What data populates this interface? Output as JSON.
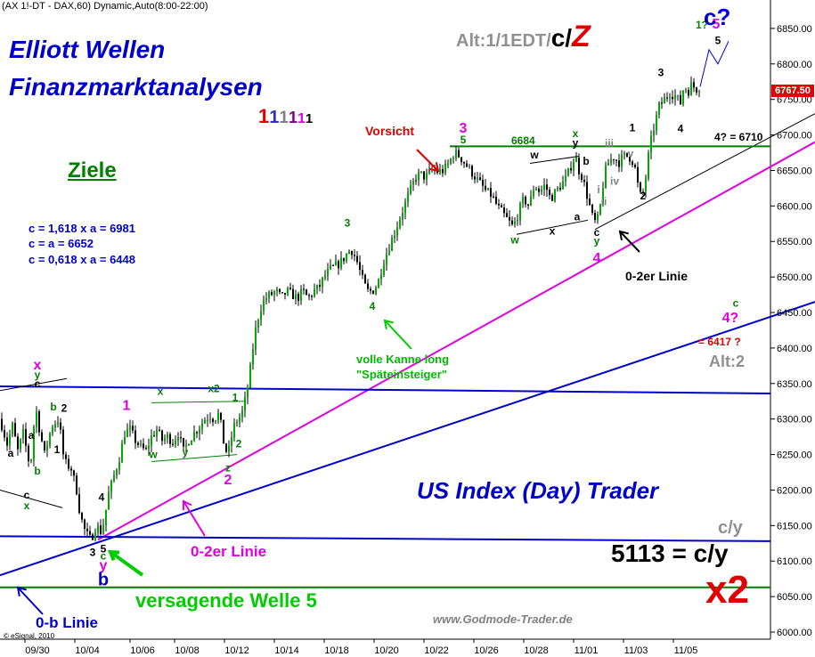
{
  "header": {
    "symbol": "(AX 1!-DT - DAX,60) Dynamic,Auto(8:00-22:00)",
    "title_line1": "Elliott Wellen",
    "title_line2": "Finanzmarktanalysen",
    "alt_label": "Alt:1/1EDT/",
    "alt_c": "c/",
    "alt_z": "Z",
    "degree_digits": [
      "1",
      "1",
      "1",
      "1",
      "1",
      "1"
    ],
    "degree_colors": [
      "#e00000",
      "#3030c0",
      "#808080",
      "#800080",
      "#e000e0",
      "#000000"
    ]
  },
  "ziele": {
    "title": "Ziele",
    "lines": [
      "c = 1,618 x a = 6981",
      "c = a = 6652",
      "c = 0,618 x a = 6448"
    ]
  },
  "annotations": {
    "vorsicht": "Vorsicht",
    "level_6684": "6684",
    "target_6710": "4? = 6710",
    "linie_0_2_black": "0-2er Linie",
    "linie_0_2_magenta": "0-2er Linie",
    "linie_0_b": "0-b Linie",
    "versagende": "versagende Welle 5",
    "volle_kanne_1": "volle Kanne long",
    "volle_kanne_2": "\"Späteinsteiger\"",
    "us_index": "US Index (Day) Trader",
    "cy_gray": "c/y",
    "cy_eq": "5113 = c/y",
    "x2": "x2",
    "alt2": "Alt:2",
    "target_6417": "= 6417 ?",
    "c_question": "c?",
    "website": "www.Godmode-Trader.de",
    "copyright": "© eSignal, 2010",
    "current_price": "6767.50"
  },
  "chart_data": {
    "type": "candlestick",
    "title": "(AX 1!-DT - DAX,60) Dynamic,Auto(8:00-22:00)",
    "xlabel": "",
    "ylabel": "",
    "ylim": [
      5990,
      6890
    ],
    "y_ticks": [
      6000,
      6050,
      6100,
      6150,
      6200,
      6250,
      6300,
      6350,
      6400,
      6450,
      6500,
      6550,
      6600,
      6650,
      6700,
      6750,
      6800,
      6850
    ],
    "x_ticks": [
      "09/30",
      "10/04",
      "10/06",
      "10/08",
      "10/12",
      "10/14",
      "10/18",
      "10/20",
      "10/22",
      "10/26",
      "10/28",
      "11/01",
      "11/03",
      "11/05"
    ],
    "last_price": 6767.5,
    "price_path": [
      [
        0,
        6300
      ],
      [
        8,
        6265
      ],
      [
        14,
        6290
      ],
      [
        20,
        6255
      ],
      [
        26,
        6280
      ],
      [
        34,
        6230
      ],
      [
        40,
        6320
      ],
      [
        42,
        6300
      ],
      [
        50,
        6250
      ],
      [
        58,
        6290
      ],
      [
        66,
        6300
      ],
      [
        72,
        6240
      ],
      [
        80,
        6230
      ],
      [
        86,
        6200
      ],
      [
        90,
        6165
      ],
      [
        96,
        6140
      ],
      [
        102,
        6130
      ],
      [
        108,
        6150
      ],
      [
        114,
        6140
      ],
      [
        118,
        6165
      ],
      [
        122,
        6195
      ],
      [
        128,
        6220
      ],
      [
        134,
        6245
      ],
      [
        140,
        6280
      ],
      [
        146,
        6285
      ],
      [
        152,
        6270
      ],
      [
        158,
        6260
      ],
      [
        164,
        6255
      ],
      [
        170,
        6275
      ],
      [
        176,
        6285
      ],
      [
        182,
        6270
      ],
      [
        188,
        6275
      ],
      [
        194,
        6268
      ],
      [
        200,
        6280
      ],
      [
        206,
        6255
      ],
      [
        212,
        6270
      ],
      [
        218,
        6280
      ],
      [
        224,
        6290
      ],
      [
        230,
        6300
      ],
      [
        236,
        6305
      ],
      [
        240,
        6300
      ],
      [
        246,
        6308
      ],
      [
        252,
        6260
      ],
      [
        256,
        6250
      ],
      [
        260,
        6275
      ],
      [
        264,
        6295
      ],
      [
        268,
        6300
      ],
      [
        272,
        6310
      ],
      [
        276,
        6330
      ],
      [
        280,
        6360
      ],
      [
        286,
        6420
      ],
      [
        292,
        6455
      ],
      [
        298,
        6470
      ],
      [
        304,
        6475
      ],
      [
        310,
        6480
      ],
      [
        316,
        6470
      ],
      [
        322,
        6480
      ],
      [
        328,
        6475
      ],
      [
        334,
        6470
      ],
      [
        340,
        6480
      ],
      [
        346,
        6470
      ],
      [
        352,
        6480
      ],
      [
        358,
        6485
      ],
      [
        364,
        6500
      ],
      [
        370,
        6510
      ],
      [
        376,
        6515
      ],
      [
        382,
        6520
      ],
      [
        388,
        6530
      ],
      [
        394,
        6540
      ],
      [
        400,
        6525
      ],
      [
        406,
        6500
      ],
      [
        412,
        6480
      ],
      [
        418,
        6480
      ],
      [
        424,
        6490
      ],
      [
        430,
        6520
      ],
      [
        436,
        6540
      ],
      [
        442,
        6560
      ],
      [
        448,
        6580
      ],
      [
        454,
        6600
      ],
      [
        460,
        6620
      ],
      [
        466,
        6640
      ],
      [
        472,
        6645
      ],
      [
        478,
        6640
      ],
      [
        484,
        6650
      ],
      [
        490,
        6648
      ],
      [
        498,
        6650
      ],
      [
        504,
        6660
      ],
      [
        510,
        6675
      ],
      [
        516,
        6670
      ],
      [
        522,
        6660
      ],
      [
        528,
        6650
      ],
      [
        534,
        6640
      ],
      [
        540,
        6630
      ],
      [
        546,
        6620
      ],
      [
        552,
        6615
      ],
      [
        558,
        6600
      ],
      [
        564,
        6590
      ],
      [
        570,
        6580
      ],
      [
        576,
        6570
      ],
      [
        582,
        6590
      ],
      [
        588,
        6610
      ],
      [
        594,
        6600
      ],
      [
        600,
        6630
      ],
      [
        606,
        6620
      ],
      [
        612,
        6630
      ],
      [
        618,
        6610
      ],
      [
        624,
        6620
      ],
      [
        630,
        6630
      ],
      [
        636,
        6640
      ],
      [
        642,
        6660
      ],
      [
        646,
        6670
      ],
      [
        650,
        6650
      ],
      [
        654,
        6640
      ],
      [
        658,
        6620
      ],
      [
        662,
        6600
      ],
      [
        666,
        6580
      ],
      [
        670,
        6575
      ],
      [
        674,
        6600
      ],
      [
        678,
        6640
      ],
      [
        682,
        6660
      ],
      [
        686,
        6665
      ],
      [
        690,
        6670
      ],
      [
        694,
        6660
      ],
      [
        700,
        6670
      ],
      [
        706,
        6670
      ],
      [
        712,
        6660
      ],
      [
        716,
        6630
      ],
      [
        720,
        6610
      ],
      [
        724,
        6630
      ],
      [
        728,
        6670
      ],
      [
        732,
        6700
      ],
      [
        736,
        6720
      ],
      [
        740,
        6740
      ],
      [
        746,
        6750
      ],
      [
        752,
        6760
      ],
      [
        758,
        6755
      ],
      [
        764,
        6745
      ],
      [
        768,
        6770
      ],
      [
        772,
        6760
      ],
      [
        776,
        6770
      ],
      [
        782,
        6765
      ],
      [
        786,
        6768
      ]
    ],
    "trend_lines": [
      {
        "name": "0-b Linie",
        "color": "#0000cc",
        "points": [
          [
            0,
            6080
          ],
          [
            915,
            6465
          ]
        ]
      },
      {
        "name": "0-2er Linie",
        "color": "#e000e0",
        "points": [
          [
            110,
            6130
          ],
          [
            915,
            6690
          ]
        ]
      },
      {
        "name": "0-2er Linie",
        "color": "#000000",
        "points": [
          [
            668,
            6567
          ],
          [
            915,
            6730
          ]
        ]
      },
      {
        "name": "",
        "color": "#0000cc",
        "points": [
          [
            0,
            6346
          ],
          [
            865,
            6336
          ]
        ]
      },
      {
        "name": "",
        "color": "#0000cc",
        "points": [
          [
            0,
            6135
          ],
          [
            865,
            6128
          ]
        ]
      },
      {
        "name": "",
        "color": "#008000",
        "points": [
          [
            0,
            6063
          ],
          [
            865,
            6063
          ]
        ]
      },
      {
        "name": "6684",
        "color": "#008000",
        "points": [
          [
            505,
            6684
          ],
          [
            865,
            6684
          ]
        ]
      }
    ],
    "wave_labels": [
      {
        "text": "x",
        "x": 42,
        "y": 6370,
        "color": "#e000e0"
      },
      {
        "text": "y",
        "x": 42,
        "y": 6357,
        "color": "#008000"
      },
      {
        "text": "c",
        "x": 42,
        "y": 6345,
        "color": "#000000"
      },
      {
        "text": "b",
        "x": 60,
        "y": 6312,
        "color": "#008000"
      },
      {
        "text": "2",
        "x": 72,
        "y": 6310,
        "color": "#000000"
      },
      {
        "text": "a",
        "x": 35,
        "y": 6272,
        "color": "#000000"
      },
      {
        "text": "b",
        "x": 42,
        "y": 6222,
        "color": "#008000"
      },
      {
        "text": "a",
        "x": 12,
        "y": 6247,
        "color": "#000000"
      },
      {
        "text": "1",
        "x": 64,
        "y": 6252,
        "color": "#000000"
      },
      {
        "text": "c",
        "x": 30,
        "y": 6188,
        "color": "#000000"
      },
      {
        "text": "x",
        "x": 30,
        "y": 6173,
        "color": "#008000"
      },
      {
        "text": "4",
        "x": 114,
        "y": 6185,
        "color": "#000000"
      },
      {
        "text": "3",
        "x": 104,
        "y": 6107,
        "color": "#000000"
      },
      {
        "text": "5",
        "x": 116,
        "y": 6112,
        "color": "#000000"
      },
      {
        "text": "c",
        "x": 116,
        "y": 6102,
        "color": "#008000"
      },
      {
        "text": "y",
        "x": 116,
        "y": 6088,
        "color": "#e000e0"
      },
      {
        "text": "b",
        "x": 116,
        "y": 6066,
        "color": "#0000cc"
      },
      {
        "text": "1",
        "x": 142,
        "y": 6313,
        "color": "#e000e0"
      },
      {
        "text": "x",
        "x": 180,
        "y": 6334,
        "color": "#008000"
      },
      {
        "text": "x2",
        "x": 240,
        "y": 6338,
        "color": "#008000"
      },
      {
        "text": "1",
        "x": 264,
        "y": 6325,
        "color": "#008000"
      },
      {
        "text": "w",
        "x": 172,
        "y": 6245,
        "color": "#008000"
      },
      {
        "text": "y",
        "x": 208,
        "y": 6248,
        "color": "#008000"
      },
      {
        "text": "2",
        "x": 268,
        "y": 6260,
        "color": "#008000"
      },
      {
        "text": "z",
        "x": 256,
        "y": 6226,
        "color": "#008000"
      },
      {
        "text": "2",
        "x": 256,
        "y": 6208,
        "color": "#e000e0"
      },
      {
        "text": "3",
        "x": 390,
        "y": 6571,
        "color": "#008000"
      },
      {
        "text": "4",
        "x": 418,
        "y": 6454,
        "color": "#008000"
      },
      {
        "text": "3",
        "x": 520,
        "y": 6703,
        "color": "#e000e0"
      },
      {
        "text": "5",
        "x": 520,
        "y": 6688,
        "color": "#008000"
      },
      {
        "text": "w",
        "x": 600,
        "y": 6667,
        "color": "#000000"
      },
      {
        "text": "w",
        "x": 578,
        "y": 6547,
        "color": "#008000"
      },
      {
        "text": "x",
        "x": 620,
        "y": 6560,
        "color": "#000000"
      },
      {
        "text": "a",
        "x": 648,
        "y": 6580,
        "color": "#000000"
      },
      {
        "text": "x",
        "x": 646,
        "y": 6697,
        "color": "#008000"
      },
      {
        "text": "y",
        "x": 646,
        "y": 6684,
        "color": "#000000"
      },
      {
        "text": "b",
        "x": 658,
        "y": 6658,
        "color": "#000000"
      },
      {
        "text": "iii",
        "x": 684,
        "y": 6683,
        "color": "#808080"
      },
      {
        "text": "v",
        "x": 708,
        "y": 6669,
        "color": "#808080"
      },
      {
        "text": "1",
        "x": 710,
        "y": 6705,
        "color": "#000000"
      },
      {
        "text": "iv",
        "x": 690,
        "y": 6630,
        "color": "#808080"
      },
      {
        "text": "ii",
        "x": 678,
        "y": 6601,
        "color": "#808080"
      },
      {
        "text": "i",
        "x": 672,
        "y": 6618,
        "color": "#808080"
      },
      {
        "text": "c",
        "x": 670,
        "y": 6558,
        "color": "#000000"
      },
      {
        "text": "y",
        "x": 670,
        "y": 6546,
        "color": "#008000"
      },
      {
        "text": "4",
        "x": 670,
        "y": 6520,
        "color": "#e000e0"
      },
      {
        "text": "2",
        "x": 722,
        "y": 6609,
        "color": "#000000"
      },
      {
        "text": "3",
        "x": 742,
        "y": 6783,
        "color": "#000000"
      },
      {
        "text": "4",
        "x": 764,
        "y": 6704,
        "color": "#000000"
      },
      {
        "text": "1?",
        "x": 788,
        "y": 6850,
        "color": "#008000"
      },
      {
        "text": "5",
        "x": 804,
        "y": 6850,
        "color": "#e000e0"
      },
      {
        "text": "5",
        "x": 806,
        "y": 6828,
        "color": "#000000"
      },
      {
        "text": "c",
        "x": 826,
        "y": 6458,
        "color": "#008000"
      },
      {
        "text": "4?",
        "x": 820,
        "y": 6436,
        "color": "#e000e0"
      },
      {
        "text": "c?",
        "x": 806,
        "y": 6870,
        "color": "#0000cc"
      }
    ],
    "channels": [
      {
        "color": "#000000",
        "points": [
          [
            0,
            6200
          ],
          [
            70,
            6175
          ]
        ]
      },
      {
        "color": "#000000",
        "points": [
          [
            0,
            6340
          ],
          [
            75,
            6357
          ]
        ]
      },
      {
        "color": "#008000",
        "points": [
          [
            170,
            6323
          ],
          [
            276,
            6325
          ]
        ]
      },
      {
        "color": "#008000",
        "points": [
          [
            170,
            6240
          ],
          [
            266,
            6250
          ]
        ]
      },
      {
        "color": "#000000",
        "points": [
          [
            580,
            6560
          ],
          [
            660,
            6580
          ]
        ]
      },
      {
        "color": "#000000",
        "points": [
          [
            595,
            6660
          ],
          [
            650,
            6670
          ]
        ]
      }
    ],
    "projection": [
      [
        786,
        6768
      ],
      [
        796,
        6820
      ],
      [
        806,
        6800
      ],
      [
        818,
        6832
      ]
    ]
  }
}
